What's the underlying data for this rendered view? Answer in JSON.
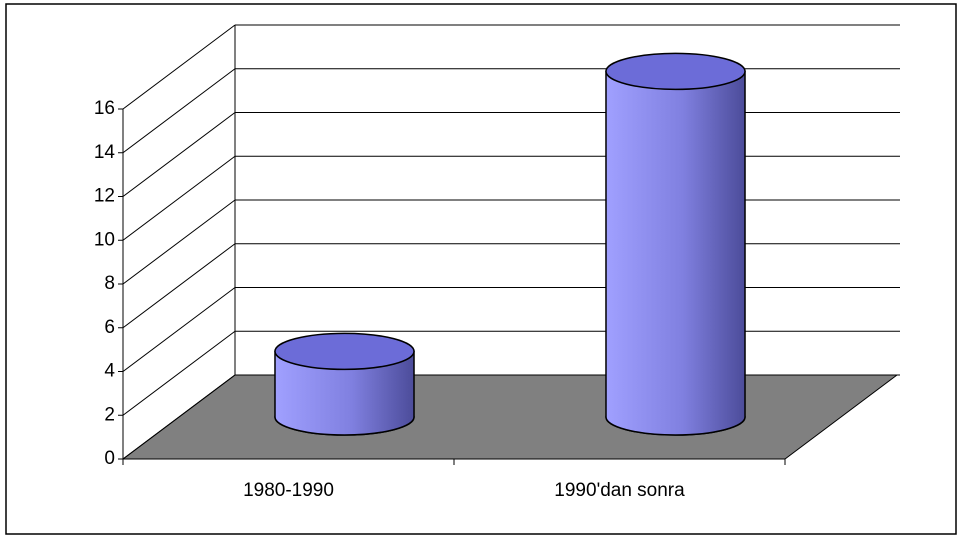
{
  "chart_data": {
    "type": "bar3d-cylinder",
    "categories": [
      "1980-1990",
      "1990'dan sonra"
    ],
    "values": [
      3,
      15.8
    ],
    "color": "#8c8cf0",
    "floor_color": "#808080",
    "ylim": [
      0,
      16
    ],
    "yticks": [
      0,
      2,
      4,
      6,
      8,
      10,
      12,
      14,
      16
    ],
    "grid": true
  }
}
